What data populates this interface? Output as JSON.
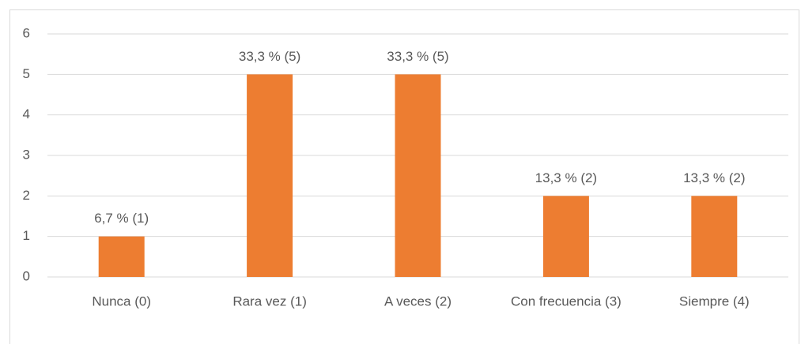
{
  "chart_data": {
    "type": "bar",
    "categories": [
      "Nunca (0)",
      "Rara vez (1)",
      "A veces (2)",
      "Con frecuencia (3)",
      "Siempre (4)"
    ],
    "values": [
      1,
      5,
      5,
      2,
      2
    ],
    "value_labels": [
      "6,7 % (1)",
      "33,3 % (5)",
      "33,3 % (5)",
      "13,3 % (2)",
      "13,3 % (2)"
    ],
    "color": "#ed7d31",
    "ylim": [
      0,
      6
    ],
    "yticks": [
      0,
      1,
      2,
      3,
      4,
      5,
      6
    ],
    "grid": true
  }
}
